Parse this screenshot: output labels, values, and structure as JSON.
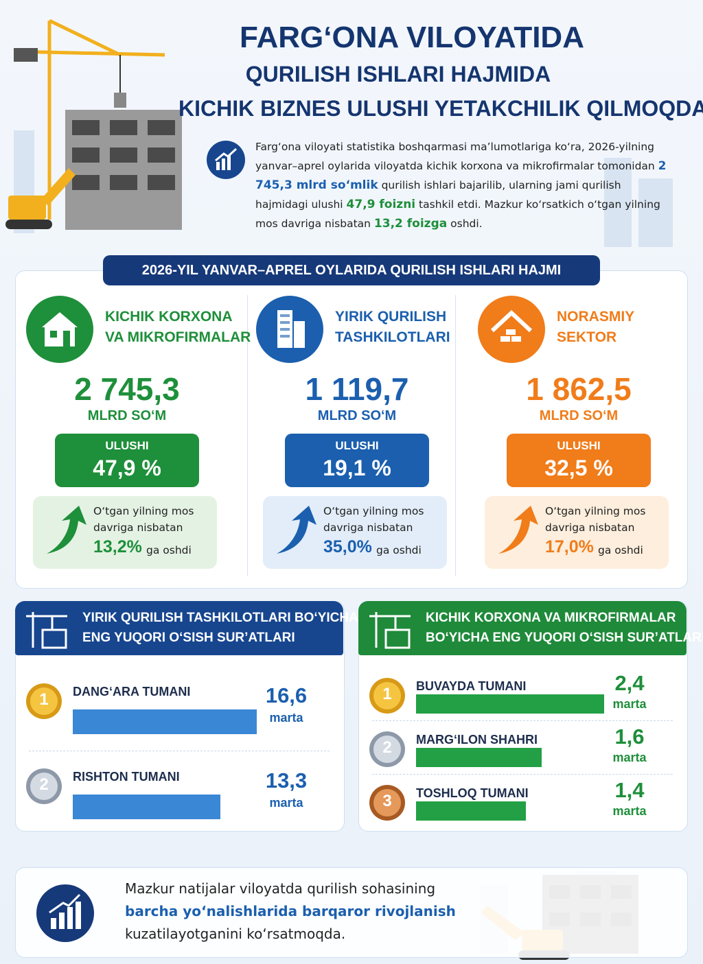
{
  "header": {
    "title_lines": [
      "FARG‘ONA VILOYATIDA",
      "QURILISH ISHLARI HAJMIDA",
      "KICHIK BIZNES ULUSHI YETAKCHILIK QILMOQDA"
    ]
  },
  "intro": {
    "parts": [
      {
        "text": "Farg‘ona viloyati statistika boshqarmasi ma’lumotlariga ko‘ra, 2026-yilning yanvar–aprel oylarida viloyatda kichik korxona va mikrofirmalar tomonidan "
      },
      {
        "text": "2 745,3 mlrd so‘mlik",
        "color": "#1b5fae"
      },
      {
        "text": " qurilish ishlari bajarilib, ularning jami qurilish hajmidagi ulushi "
      },
      {
        "text": "47,9 foizni",
        "color": "#1e8f3a"
      },
      {
        "text": " tashkil etdi. Mazkur ko‘rsatkich o‘tgan yilning mos davriga nisbatan "
      },
      {
        "text": "13,2 foizga",
        "color": "#1e8f3a"
      },
      {
        "text": " oshdi."
      }
    ]
  },
  "section_title": "2026-YIL YANVAR–APREL OYLARIDA QURILISH ISHLARI HAJMI",
  "cards": [
    {
      "title_lines": [
        "KICHIK KORXONA",
        "VA MIKROFIRMALAR"
      ],
      "amount": "2 745,3",
      "unit": "MLRD SO‘M",
      "share_label": "ULUSHI",
      "share": "47,9 %",
      "growth_lines": [
        "O‘tgan yilning mos",
        "davriga nisbatan"
      ],
      "growth_value": "13,2%",
      "growth_suffix": "ga oshdi",
      "color": "#1e8f3a",
      "light": "#e4f2e3"
    },
    {
      "title_lines": [
        "YIRIK QURILISH",
        "TASHKILOTLARI"
      ],
      "amount": "1 119,7",
      "unit": "MLRD SO‘M",
      "share_label": "ULUSHI",
      "share": "19,1 %",
      "growth_lines": [
        "O‘tgan yilning mos",
        "davriga nisbatan"
      ],
      "growth_value": "35,0%",
      "growth_suffix": "ga oshdi",
      "color": "#1b5fae",
      "light": "#e2edf9"
    },
    {
      "title_lines": [
        "NORASMIY",
        "SEKTOR"
      ],
      "amount": "1 862,5",
      "unit": "MLRD SO‘M",
      "share_label": "ULUSHI",
      "share": "32,5 %",
      "growth_lines": [
        "O‘tgan yilning mos",
        "davriga nisbatan"
      ],
      "growth_value": "17,0%",
      "growth_suffix": "ga oshdi",
      "color": "#f07c1a",
      "light": "#fdeedd"
    }
  ],
  "panels": [
    {
      "title_lines": [
        "YIRIK QURILISH TASHKILOTLARI BO‘YICHA",
        "ENG YUQORI  O‘SISH SUR’ATLARI"
      ],
      "unit": "marta",
      "color": "#17468f",
      "bar_color": "#3a87d6",
      "value_color": "#1b5fae",
      "rows": [
        {
          "rank": 1,
          "name": "DANG‘ARA TUMANI",
          "value": 16.6,
          "value_label": "16,6"
        },
        {
          "rank": 2,
          "name": "RISHTON TUMANI",
          "value": 13.3,
          "value_label": "13,3"
        }
      ]
    },
    {
      "title_lines": [
        "KICHIK KORXONA VA MIKROFIRMALAR",
        "BO‘YICHA ENG YUQORI O‘SISH SUR’ATLARI"
      ],
      "unit": "marta",
      "color": "#1f8a3a",
      "bar_color": "#23a045",
      "value_color": "#1e8f3a",
      "rows": [
        {
          "rank": 1,
          "name": "BUVAYDA TUMANI",
          "value": 2.4,
          "value_label": "2,4"
        },
        {
          "rank": 2,
          "name": "MARG‘ILON SHAHRI",
          "value": 1.6,
          "value_label": "1,6"
        },
        {
          "rank": 3,
          "name": "TOSHLOQ TUMANI",
          "value": 1.4,
          "value_label": "1,4"
        }
      ]
    }
  ],
  "footer": {
    "lines": [
      "Mazkur natijalar viloyatda qurilish sohasining",
      "barcha yo‘nalishlarida barqaror rivojlanish",
      "kuzatilayotganini ko‘rsatmoqda."
    ]
  }
}
